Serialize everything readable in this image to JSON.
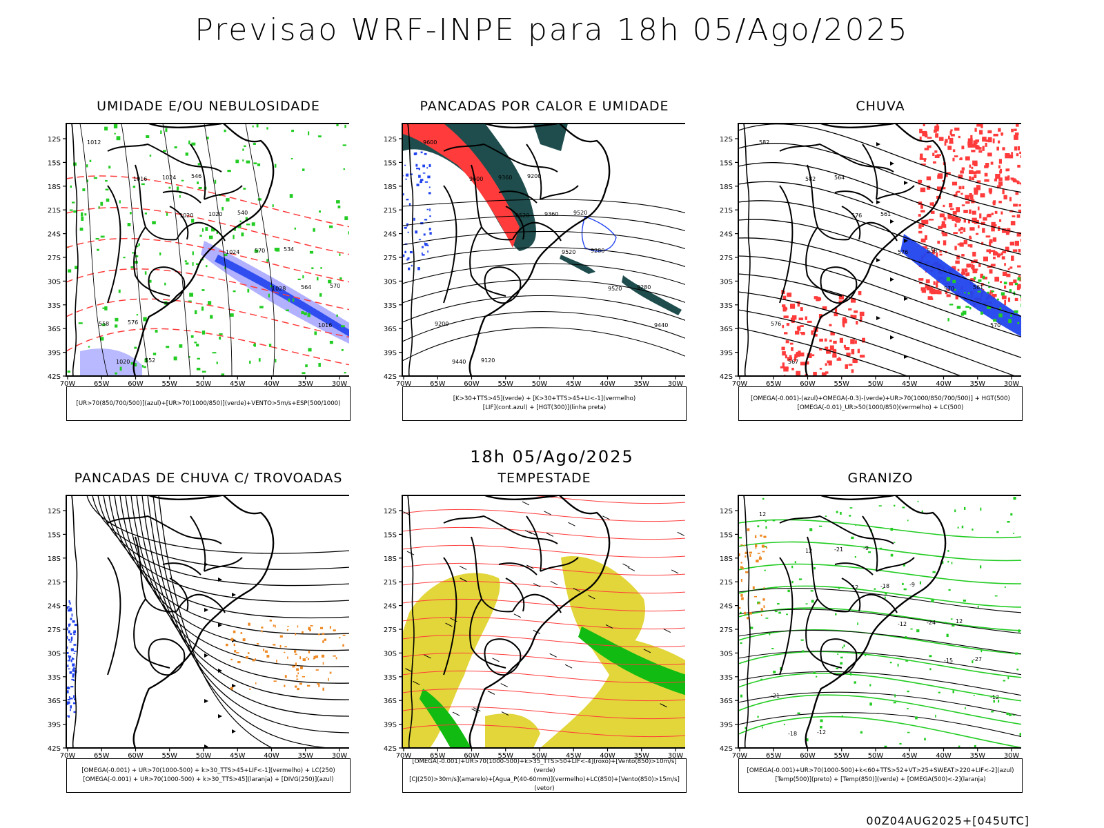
{
  "page": {
    "title": "Previsao WRF-INPE  para 18h 05/Ago/2025",
    "mid_label": "18h 05/Ago/2025",
    "footer": "00Z04AUG2025+[045UTC]"
  },
  "axes": {
    "lat_labels": [
      "12S",
      "15S",
      "18S",
      "21S",
      "24S",
      "27S",
      "30S",
      "33S",
      "36S",
      "39S",
      "42S"
    ],
    "lon_labels": [
      "70W",
      "65W",
      "60W",
      "55W",
      "50W",
      "45W",
      "40W",
      "35W",
      "30W"
    ]
  },
  "panels": [
    {
      "title": "UMIDADE E/OU NEBULOSIDADE",
      "caption": [
        "[UR>70(850/700/500)](azul)+[UR>70(1000/850)](verde)+VENTO>5m/s+ESP(500/1000)"
      ],
      "labels": [
        "1012",
        "1016",
        "1020",
        "1024",
        "1028",
        "1016",
        "1020",
        "1024",
        "1020",
        "570",
        "564",
        "558",
        "552",
        "546",
        "540",
        "534",
        "570",
        "576"
      ]
    },
    {
      "title": "PANCADAS POR CALOR E UMIDADE",
      "caption": [
        "[K>30+TTS>45](verde) + [K>30+TTS>45+LI<-1](vermelho)",
        "[LIF](cont.azul) + [HGT(300)](linha preta)"
      ],
      "labels": [
        "9600",
        "9600",
        "9520",
        "9520",
        "9520",
        "9440",
        "9440",
        "9360",
        "9360",
        "9280",
        "9280",
        "9200",
        "9120",
        "9200",
        "9520"
      ]
    },
    {
      "title": "CHUVA",
      "caption": [
        "[OMEGA(-0.001)-(azul)+OMEGA(-0.3)-(verde)+UR>70(1000/850/700/500)] + HGT(500)",
        "[OMEGA(-0.01)_UR>50(1000/850)(vermelho) + LC(500)"
      ],
      "labels": [
        "582",
        "582",
        "576",
        "576",
        "570",
        "570",
        "567",
        "564",
        "561",
        "558",
        "561",
        "576"
      ]
    },
    {
      "title": "PANCADAS DE CHUVA C/ TROVOADAS",
      "caption": [
        "[OMEGA(-0.001) + UR>70(1000-500) + k>30_TTS>45+LIF<-1](vermelho) + LC(250)",
        "[OMEGA(-0.001) + UR>70(1000-500) + k>30_TTS>45](laranja) + [DIVG(250)](azul)"
      ],
      "labels": []
    },
    {
      "title": "TEMPESTADE",
      "caption": [
        "[OMEGA(-0.001)+UR>70(1000-500)+k>35_TTS>50+LIF<-4](roxo)+[Vento(850)>10m/s](verde)",
        "[CJ(250)>30m/s](amarelo)+[Agua_P(40-60mm)](vermelho)+LC(850)+[Vento(850)>15m/s](vetor)"
      ],
      "labels": []
    },
    {
      "title": "GRANIZO",
      "caption": [
        "[OMEGA(-0.001)+UR>70(1000-500)+k<60+TTS>52+VT>25+SWEAT>220+LIF<-2](azul)",
        "[Temp(500)](preto) + [Temp(850)](verde) + [OMEGA(500)<-2](laranja)"
      ],
      "labels": [
        "12",
        "12",
        "12",
        "-12",
        "-15",
        "-12",
        "-18",
        "-21",
        "-18",
        "-24",
        "-27",
        "-21",
        "-12",
        "-9",
        "-9",
        "12"
      ]
    }
  ],
  "colors": {
    "frame": "#000000",
    "red": "#ff3b3b",
    "green": "#22cc22",
    "blue": "#2244ee",
    "lightblue": "#a8a8ff",
    "darkteal": "#1f4d4d",
    "yellow": "#e2d63a",
    "orange": "#ee8822",
    "greenfill": "#11bb11"
  }
}
